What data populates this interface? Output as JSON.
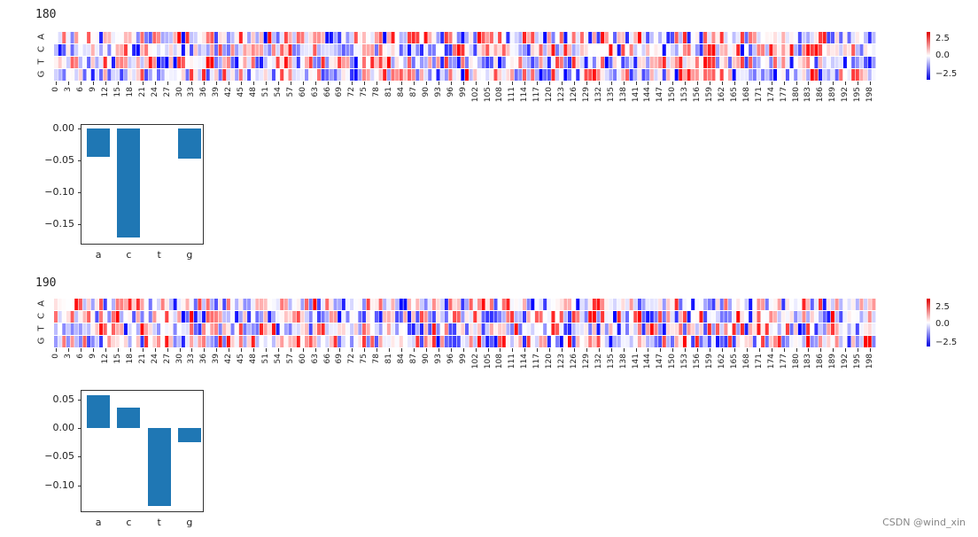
{
  "watermark": "CSDN @wind_xin",
  "colors": {
    "bar": "#1f77b4",
    "pos": "#e00000",
    "neg": "#0000e0"
  },
  "chart_data": [
    {
      "type": "heatmap",
      "title": "180",
      "rows": [
        "A",
        "C",
        "T",
        "G"
      ],
      "x_range": [
        0,
        199
      ],
      "x_tick_step": 3,
      "colorbar": {
        "ticks": [
          "2.5",
          "0.0",
          "−2.5"
        ],
        "range": [
          -4,
          4
        ],
        "cmap": "bwr"
      }
    },
    {
      "type": "bar",
      "categories": [
        "a",
        "c",
        "t",
        "g"
      ],
      "values": [
        -0.045,
        -0.17,
        0.0,
        -0.048
      ],
      "yticks": [
        "0.00",
        "−0.05",
        "−0.10",
        "−0.15"
      ],
      "ylim": [
        -0.18,
        0.005
      ]
    },
    {
      "type": "heatmap",
      "title": "190",
      "rows": [
        "A",
        "C",
        "T",
        "G"
      ],
      "x_range": [
        0,
        199
      ],
      "x_tick_step": 3,
      "colorbar": {
        "ticks": [
          "2.5",
          "0.0",
          "−2.5"
        ],
        "range": [
          -4,
          4
        ],
        "cmap": "bwr"
      }
    },
    {
      "type": "bar",
      "categories": [
        "a",
        "c",
        "t",
        "g"
      ],
      "values": [
        0.057,
        0.035,
        -0.136,
        -0.025
      ],
      "yticks": [
        "0.05",
        "0.00",
        "−0.05",
        "−0.10"
      ],
      "ylim": [
        -0.145,
        0.065
      ]
    }
  ],
  "labels": {
    "h1": "180",
    "h2": "190",
    "cb": [
      "2.5",
      "0.0",
      "−2.5"
    ],
    "rows": [
      "A",
      "C",
      "T",
      "G"
    ],
    "b1y": [
      "0.00",
      "−0.05",
      "−0.10",
      "−0.15"
    ],
    "b2y": [
      "0.05",
      "0.00",
      "−0.05",
      "−0.10"
    ],
    "cats": [
      "a",
      "c",
      "t",
      "g"
    ]
  }
}
